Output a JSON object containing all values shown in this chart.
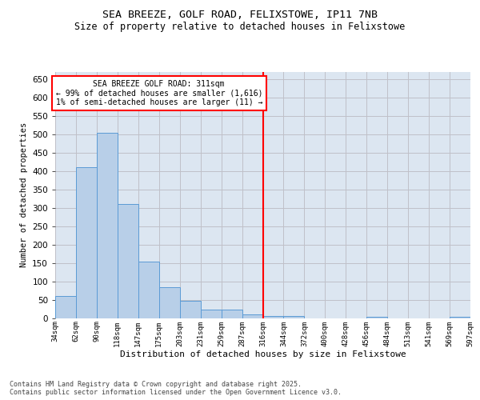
{
  "title": "SEA BREEZE, GOLF ROAD, FELIXSTOWE, IP11 7NB",
  "subtitle": "Size of property relative to detached houses in Felixstowe",
  "xlabel": "Distribution of detached houses by size in Felixstowe",
  "ylabel": "Number of detached properties",
  "bar_values": [
    60,
    410,
    505,
    310,
    153,
    83,
    46,
    22,
    22,
    9,
    6,
    6,
    0,
    0,
    0,
    4,
    0,
    0,
    0,
    4
  ],
  "bin_labels": [
    "34sqm",
    "62sqm",
    "90sqm",
    "118sqm",
    "147sqm",
    "175sqm",
    "203sqm",
    "231sqm",
    "259sqm",
    "287sqm",
    "316sqm",
    "344sqm",
    "372sqm",
    "400sqm",
    "428sqm",
    "456sqm",
    "484sqm",
    "513sqm",
    "541sqm",
    "569sqm",
    "597sqm"
  ],
  "bar_color": "#b8cfe8",
  "bar_edge_color": "#5b9bd5",
  "grid_color": "#c0c0c8",
  "plot_bg_color": "#dce6f1",
  "vline_color": "red",
  "annotation_text": "SEA BREEZE GOLF ROAD: 311sqm\n← 99% of detached houses are smaller (1,616)\n1% of semi-detached houses are larger (11) →",
  "ylim": [
    0,
    670
  ],
  "yticks": [
    0,
    50,
    100,
    150,
    200,
    250,
    300,
    350,
    400,
    450,
    500,
    550,
    600,
    650
  ],
  "footer": "Contains HM Land Registry data © Crown copyright and database right 2025.\nContains public sector information licensed under the Open Government Licence v3.0.",
  "num_bins": 20,
  "vline_bin_index": 10
}
